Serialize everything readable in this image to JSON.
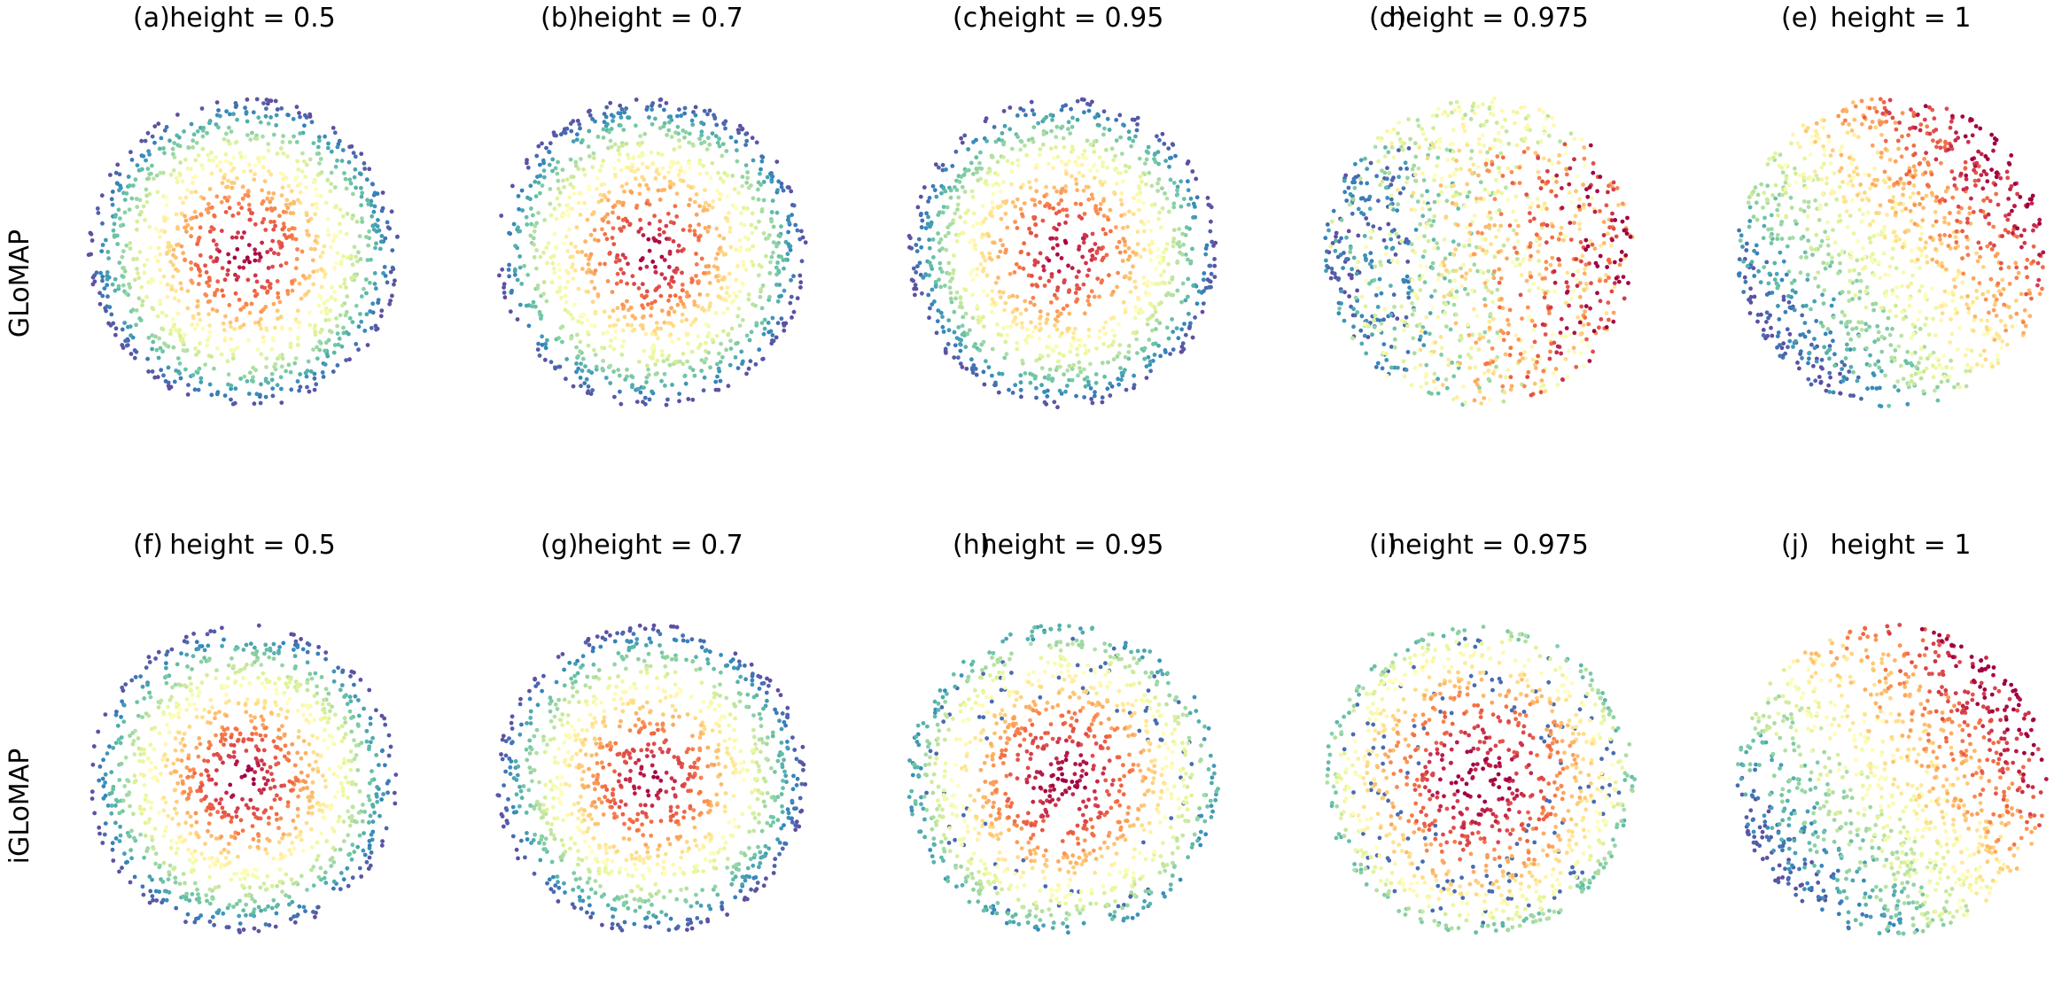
{
  "figure": {
    "row_labels": [
      "GLoMAP",
      "iGLoMAP"
    ]
  },
  "chart_data": [
    {
      "type": "scatter",
      "panel": "(a)",
      "title": "height = 0.5",
      "method": "GLoMAP",
      "color_pattern": "radial"
    },
    {
      "type": "scatter",
      "panel": "(b)",
      "title": "height = 0.7",
      "method": "GLoMAP",
      "color_pattern": "radial"
    },
    {
      "type": "scatter",
      "panel": "(c)",
      "title": "height = 0.95",
      "method": "GLoMAP",
      "color_pattern": "radial"
    },
    {
      "type": "scatter",
      "panel": "(d)",
      "title": "height = 0.975",
      "method": "GLoMAP",
      "color_pattern": "mixed"
    },
    {
      "type": "scatter",
      "panel": "(e)",
      "title": "height = 1",
      "method": "GLoMAP",
      "color_pattern": "hemisphere"
    },
    {
      "type": "scatter",
      "panel": "(f)",
      "title": "height = 0.5",
      "method": "iGLoMAP",
      "color_pattern": "radial"
    },
    {
      "type": "scatter",
      "panel": "(g)",
      "title": "height = 0.7",
      "method": "iGLoMAP",
      "color_pattern": "radial"
    },
    {
      "type": "scatter",
      "panel": "(h)",
      "title": "height = 0.95",
      "method": "iGLoMAP",
      "color_pattern": "radial-outer-blue"
    },
    {
      "type": "scatter",
      "panel": "(i)",
      "title": "height = 0.975",
      "method": "iGLoMAP",
      "color_pattern": "radial-mixed"
    },
    {
      "type": "scatter",
      "panel": "(j)",
      "title": "height = 1",
      "method": "iGLoMAP",
      "color_pattern": "hemisphere"
    }
  ],
  "colors": {
    "colormap": "Spectral",
    "stops": [
      "#9e0142",
      "#d53e4f",
      "#f46d43",
      "#fdae61",
      "#fee08b",
      "#ffffbf",
      "#e6f598",
      "#abdda4",
      "#66c2a5",
      "#3288bd",
      "#5e4fa2"
    ]
  },
  "grid": false,
  "axes_visible": false
}
